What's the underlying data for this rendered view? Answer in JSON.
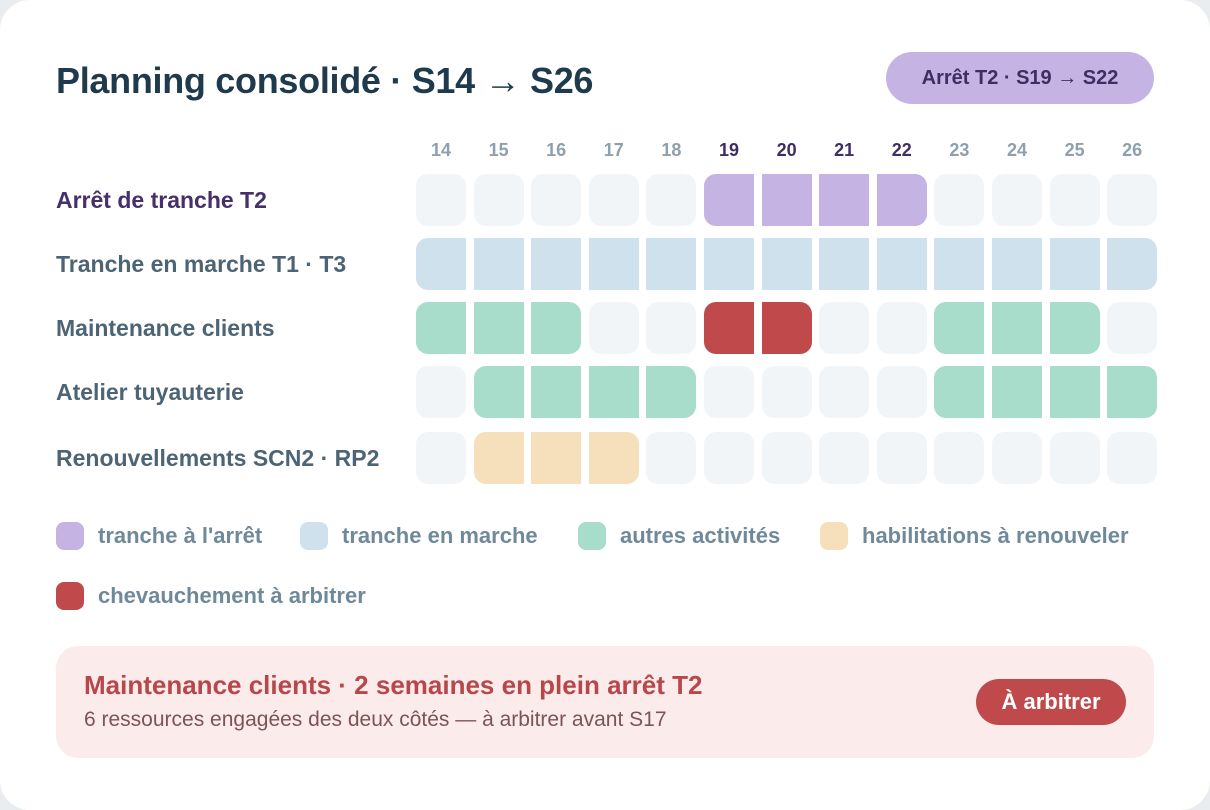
{
  "header": {
    "title": "Planning consolidé · S14 → S26",
    "badge": "Arrêt T2 · S19 → S22"
  },
  "weeks": [
    "14",
    "15",
    "16",
    "17",
    "18",
    "19",
    "20",
    "21",
    "22",
    "23",
    "24",
    "25",
    "26"
  ],
  "highlighted_weeks": [
    "19",
    "20",
    "21",
    "22"
  ],
  "colors": {
    "arret": "#c5b3e3",
    "marche": "#d0e1ee",
    "activite": "#a7ddca",
    "habilitation": "#f6dfbb",
    "conflit": "#c04a4b",
    "empty": "#f2f5f7"
  },
  "rows": [
    {
      "label": "Arrêt de tranche T2",
      "accent": true,
      "cells": [
        "empty",
        "empty",
        "empty",
        "empty",
        "empty",
        "arret",
        "arret",
        "arret",
        "arret",
        "empty",
        "empty",
        "empty",
        "empty"
      ]
    },
    {
      "label": "Tranche en marche T1 · T3",
      "cells": [
        "marche",
        "marche",
        "marche",
        "marche",
        "marche",
        "marche",
        "marche",
        "marche",
        "marche",
        "marche",
        "marche",
        "marche",
        "marche"
      ]
    },
    {
      "label": "Maintenance clients",
      "cells": [
        "activite",
        "activite",
        "activite",
        "empty",
        "empty",
        "conflit",
        "conflit",
        "empty",
        "empty",
        "activite",
        "activite",
        "activite",
        "empty"
      ]
    },
    {
      "label": "Atelier tuyauterie",
      "cells": [
        "empty",
        "activite",
        "activite",
        "activite",
        "activite",
        "empty",
        "empty",
        "empty",
        "empty",
        "activite",
        "activite",
        "activite",
        "activite"
      ]
    },
    {
      "label": "Renouvellements SCN2 · RP2",
      "cells": [
        "empty",
        "habilitation",
        "habilitation",
        "habilitation",
        "empty",
        "empty",
        "empty",
        "empty",
        "empty",
        "empty",
        "empty",
        "empty",
        "empty"
      ]
    }
  ],
  "legend": [
    {
      "key": "arret",
      "label": "tranche à l'arrêt"
    },
    {
      "key": "marche",
      "label": "tranche en marche"
    },
    {
      "key": "activite",
      "label": "autres activités"
    },
    {
      "key": "habilitation",
      "label": "habilitations à renouveler"
    },
    {
      "key": "conflit",
      "label": "chevauchement à arbitrer"
    }
  ],
  "alert": {
    "title": "Maintenance clients · 2 semaines en plein arrêt T2",
    "subtitle": "6 ressources engagées des deux côtés — à arbitrer avant S17",
    "button": "À arbitrer"
  }
}
